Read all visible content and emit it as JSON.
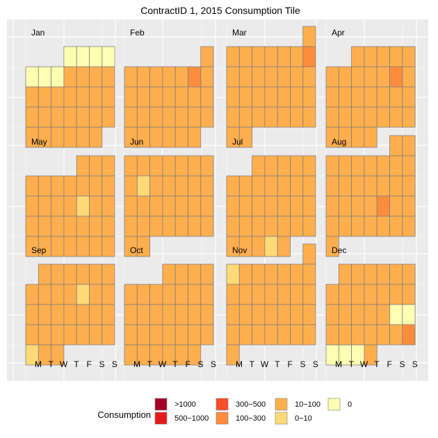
{
  "chart_data": {
    "type": "heatmap",
    "title": "ContractID 1, 2015 Consumption Tile",
    "year": 2015,
    "weekday_labels": [
      "M",
      "T",
      "W",
      "T",
      "F",
      "S",
      "S"
    ],
    "months": [
      "Jan",
      "Feb",
      "Mar",
      "Apr",
      "May",
      "Jun",
      "Jul",
      "Aug",
      "Sep",
      "Oct",
      "Nov",
      "Dec"
    ],
    "categories": [
      "0",
      "0-10",
      "10-100",
      "100-300",
      "300-500",
      "500-1000",
      ">1000"
    ],
    "default_category": "10-100",
    "daily_overrides": [
      {
        "date": "2015-01-01",
        "category": "0"
      },
      {
        "date": "2015-01-02",
        "category": "0"
      },
      {
        "date": "2015-01-03",
        "category": "0"
      },
      {
        "date": "2015-01-04",
        "category": "0"
      },
      {
        "date": "2015-01-05",
        "category": "0"
      },
      {
        "date": "2015-01-06",
        "category": "0"
      },
      {
        "date": "2015-01-07",
        "category": "0"
      },
      {
        "date": "2015-02-07",
        "category": "100-300"
      },
      {
        "date": "2015-03-08",
        "category": "100-300"
      },
      {
        "date": "2015-04-11",
        "category": "100-300"
      },
      {
        "date": "2015-05-15",
        "category": "0-10"
      },
      {
        "date": "2015-06-09",
        "category": "0-10"
      },
      {
        "date": "2015-07-30",
        "category": "0-10"
      },
      {
        "date": "2015-08-21",
        "category": "100-300"
      },
      {
        "date": "2015-09-11",
        "category": "0-10"
      },
      {
        "date": "2015-09-28",
        "category": "0-10"
      },
      {
        "date": "2015-11-02",
        "category": "0-10"
      },
      {
        "date": "2015-12-19",
        "category": "0"
      },
      {
        "date": "2015-12-20",
        "category": "0"
      },
      {
        "date": "2015-12-27",
        "category": "100-300"
      },
      {
        "date": "2015-12-28",
        "category": "0"
      },
      {
        "date": "2015-12-29",
        "category": "0"
      },
      {
        "date": "2015-12-30",
        "category": "0"
      }
    ],
    "legend": {
      "title": "Consumption",
      "position": "bottom",
      "entries": [
        {
          "label": ">1000",
          "color": "#a50026"
        },
        {
          "label": "500−1000",
          "color": "#e31a1c"
        },
        {
          "label": "300−500",
          "color": "#fc4e2a"
        },
        {
          "label": "100−300",
          "color": "#fd8d3c"
        },
        {
          "label": "10−100",
          "color": "#feae4d"
        },
        {
          "label": "0−10",
          "color": "#fed976"
        },
        {
          "label": "0",
          "color": "#ffffb2"
        }
      ]
    },
    "colors": {
      "0": "#ffffb2",
      "0-10": "#fed976",
      "10-100": "#feae4d",
      "100-300": "#fd8d3c",
      "300-500": "#fc4e2a",
      "500-1000": "#e31a1c",
      ">1000": "#a50026"
    },
    "grid": true,
    "panel_background": "#ebebeb",
    "tile_border": "#7f7f7f"
  }
}
